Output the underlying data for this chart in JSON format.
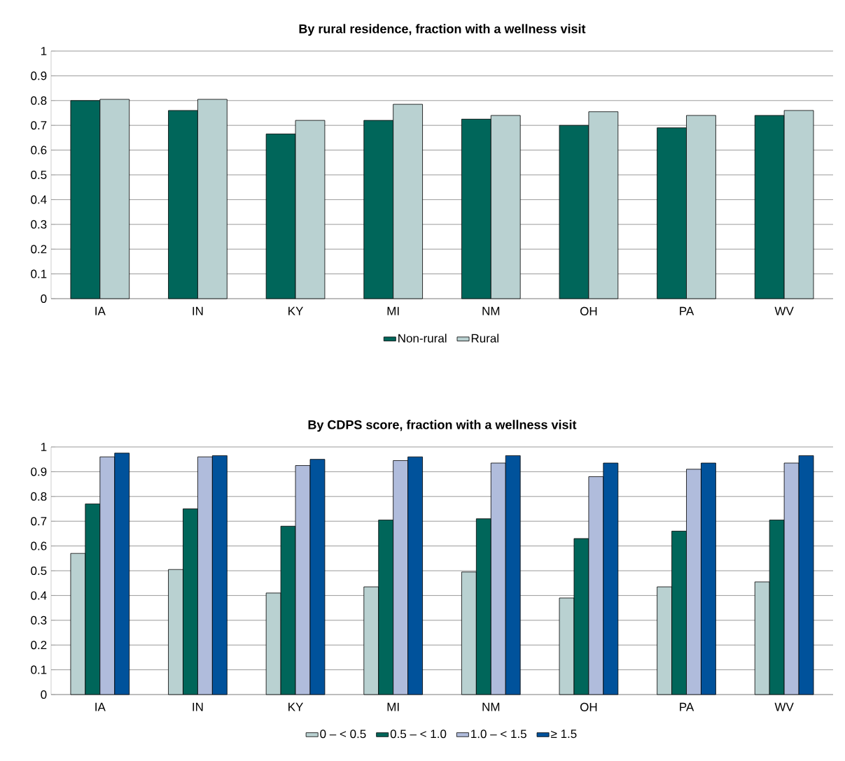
{
  "chart_data": [
    {
      "type": "bar",
      "title": "By rural residence, fraction with a wellness visit",
      "categories": [
        "IA",
        "IN",
        "KY",
        "MI",
        "NM",
        "OH",
        "PA",
        "WV"
      ],
      "series": [
        {
          "name": "Non-rural",
          "color": "#00665a",
          "values": [
            0.8,
            0.76,
            0.665,
            0.72,
            0.725,
            0.7,
            0.69,
            0.74
          ]
        },
        {
          "name": "Rural",
          "color": "#b9d1d1",
          "values": [
            0.805,
            0.805,
            0.72,
            0.785,
            0.74,
            0.755,
            0.74,
            0.76
          ]
        }
      ],
      "ylim": [
        0,
        1
      ],
      "yticks": [
        0,
        0.1,
        0.2,
        0.3,
        0.4,
        0.5,
        0.6,
        0.7,
        0.8,
        0.9,
        1
      ],
      "grid": "y",
      "legend": "bottom"
    },
    {
      "type": "bar",
      "title": "By CDPS score, fraction with a wellness visit",
      "categories": [
        "IA",
        "IN",
        "KY",
        "MI",
        "NM",
        "OH",
        "PA",
        "WV"
      ],
      "series": [
        {
          "name": "0 – < 0.5",
          "color": "#b9d1d1",
          "values": [
            0.57,
            0.505,
            0.41,
            0.435,
            0.495,
            0.39,
            0.435,
            0.455
          ]
        },
        {
          "name": "0.5 – < 1.0",
          "color": "#00665a",
          "values": [
            0.77,
            0.75,
            0.68,
            0.705,
            0.71,
            0.63,
            0.66,
            0.705
          ]
        },
        {
          "name": "1.0 – < 1.5",
          "color": "#b0bcdc",
          "values": [
            0.96,
            0.96,
            0.925,
            0.945,
            0.935,
            0.88,
            0.91,
            0.935
          ]
        },
        {
          "name": "≥ 1.5",
          "color": "#00529b",
          "values": [
            0.975,
            0.965,
            0.95,
            0.96,
            0.965,
            0.935,
            0.935,
            0.965
          ]
        }
      ],
      "ylim": [
        0,
        1
      ],
      "yticks": [
        0,
        0.1,
        0.2,
        0.3,
        0.4,
        0.5,
        0.6,
        0.7,
        0.8,
        0.9,
        1
      ],
      "grid": "y",
      "legend": "bottom"
    }
  ]
}
